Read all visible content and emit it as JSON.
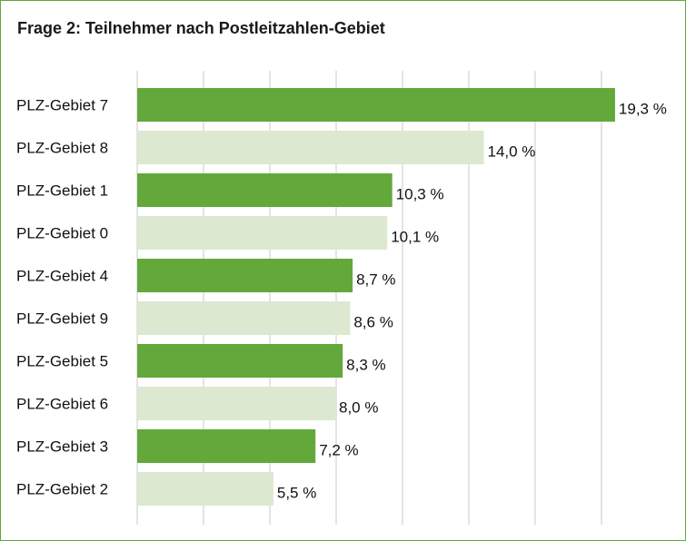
{
  "title": "Frage 2: Teilnehmer nach Postleitzahlen-Gebiet",
  "colors": {
    "dark": "#62a83a",
    "light": "#dce8d0",
    "grid": "#c8c8c8",
    "border": "#62a83a",
    "text": "#111111"
  },
  "chart_data": {
    "type": "bar",
    "orientation": "horizontal",
    "title": "Frage 2: Teilnehmer nach Postleitzahlen-Gebiet",
    "xlabel": "",
    "ylabel": "",
    "xlim": [
      0,
      20
    ],
    "grid": true,
    "categories": [
      "PLZ-Gebiet 7",
      "PLZ-Gebiet 8",
      "PLZ-Gebiet 1",
      "PLZ-Gebiet 0",
      "PLZ-Gebiet 4",
      "PLZ-Gebiet 9",
      "PLZ-Gebiet 5",
      "PLZ-Gebiet 6",
      "PLZ-Gebiet 3",
      "PLZ-Gebiet 2"
    ],
    "values": [
      19.3,
      14.0,
      10.3,
      10.1,
      8.7,
      8.6,
      8.3,
      8.0,
      7.2,
      5.5
    ],
    "labels": [
      "19,3 %",
      "14,0 %",
      "10,3 %",
      "10,1 %",
      "8,7 %",
      "8,6 %",
      "8,3 %",
      "8,0 %",
      "7,2 %",
      "5,5 %"
    ],
    "bar_colors": [
      "dark",
      "light",
      "dark",
      "light",
      "dark",
      "light",
      "dark",
      "light",
      "dark",
      "light"
    ]
  }
}
